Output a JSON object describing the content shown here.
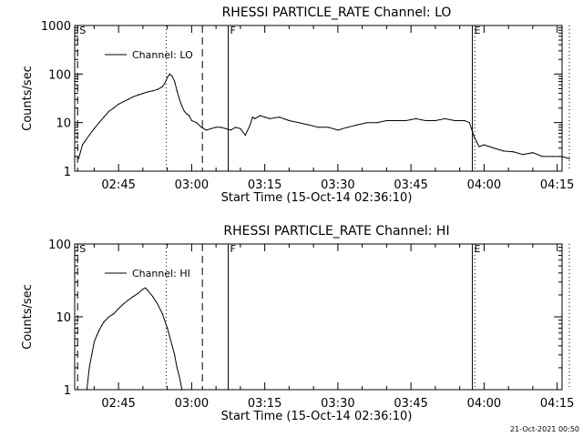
{
  "footer_stamp": "21-Oct-2021 00:50",
  "chart_data": [
    {
      "type": "line",
      "title": "RHESSI PARTICLE_RATE Channel: LO",
      "xlabel": "Start Time (15-Oct-14 02:36:10)",
      "ylabel": "Counts/sec",
      "yscale": "log",
      "ylim": [
        1,
        1000
      ],
      "xlim_minutes": [
        0,
        100
      ],
      "x_ticks": [
        9,
        24,
        39,
        54,
        69,
        84,
        99
      ],
      "x_tick_labels": [
        "02:45",
        "03:00",
        "03:15",
        "03:30",
        "03:45",
        "04:00",
        "04:15"
      ],
      "y_ticks": [
        1,
        10,
        100,
        1000
      ],
      "y_tick_labels": [
        "1",
        "10",
        "100",
        "1000"
      ],
      "legend": "Channel: LO",
      "markers": [
        {
          "label": "S",
          "minute": 0.6,
          "style": "dashed"
        },
        {
          "label": "",
          "minute": 18.8,
          "style": "dotted"
        },
        {
          "label": "",
          "minute": 26.2,
          "style": "dashed"
        },
        {
          "label": "F",
          "minute": 31.5,
          "style": "solid"
        },
        {
          "label": "E",
          "minute": 81.6,
          "style": "solid"
        },
        {
          "label": "",
          "minute": 82.1,
          "style": "dotted"
        },
        {
          "label": "",
          "minute": 101.5,
          "style": "dotted"
        }
      ],
      "series": [
        {
          "name": "Channel: LO",
          "x": [
            0.8,
            1.2,
            1.6,
            2.0,
            3,
            4,
            5,
            6,
            7,
            8,
            9,
            10,
            11,
            12,
            13,
            14,
            15,
            16,
            17,
            18,
            18.5,
            19.0,
            19.5,
            20.0,
            20.5,
            21.0,
            21.5,
            22.0,
            22.5,
            23.0,
            23.5,
            24.0,
            25.0,
            26.0,
            27.0,
            28.0,
            29.0,
            30.0,
            31.0,
            32.0,
            33.0,
            34.0,
            35.0,
            36.0,
            36.5,
            37.0,
            38.0,
            39.0,
            40.0,
            42.0,
            44.0,
            46.0,
            48.0,
            50.0,
            52.0,
            54.0,
            56.0,
            58.0,
            60.0,
            62.0,
            64.0,
            66.0,
            68.0,
            70.0,
            72.0,
            74.0,
            76.0,
            78.0,
            80.0,
            81.0,
            81.5,
            82.0,
            82.5,
            83.0,
            84.0,
            86.0,
            88.0,
            90.0,
            92.0,
            94.0,
            96.0,
            98.0,
            100.0,
            101.5
          ],
          "values": [
            1.8,
            2.5,
            3.5,
            4.0,
            5.5,
            7.5,
            10,
            13,
            17,
            20,
            24,
            27,
            30,
            34,
            37,
            40,
            43,
            45,
            48,
            55,
            65,
            85,
            100,
            90,
            70,
            45,
            30,
            22,
            17,
            15,
            14,
            11,
            10,
            8,
            7,
            7.5,
            8,
            8,
            7.5,
            7,
            8,
            7.5,
            5.5,
            9,
            13,
            12,
            14,
            13,
            12,
            13,
            11,
            10,
            9,
            8,
            8,
            7,
            8,
            9,
            10,
            10,
            11,
            11,
            11,
            12,
            11,
            11,
            12,
            11,
            11,
            10,
            7,
            5,
            4,
            3.2,
            3.5,
            3.0,
            2.6,
            2.5,
            2.2,
            2.4,
            2.0,
            2.0,
            2.0,
            1.8
          ]
        }
      ]
    },
    {
      "type": "line",
      "title": "RHESSI PARTICLE_RATE Channel: HI",
      "xlabel": "Start Time (15-Oct-14 02:36:10)",
      "ylabel": "Counts/sec",
      "yscale": "log",
      "ylim": [
        1,
        100
      ],
      "xlim_minutes": [
        0,
        100
      ],
      "x_ticks": [
        9,
        24,
        39,
        54,
        69,
        84,
        99
      ],
      "x_tick_labels": [
        "02:45",
        "03:00",
        "03:15",
        "03:30",
        "03:45",
        "04:00",
        "04:15"
      ],
      "y_ticks": [
        1,
        10,
        100
      ],
      "y_tick_labels": [
        "1",
        "10",
        "100"
      ],
      "legend": "Channel: HI",
      "markers": [
        {
          "label": "S",
          "minute": 0.6,
          "style": "dashed"
        },
        {
          "label": "",
          "minute": 18.8,
          "style": "dotted"
        },
        {
          "label": "",
          "minute": 26.2,
          "style": "dashed"
        },
        {
          "label": "F",
          "minute": 31.5,
          "style": "solid"
        },
        {
          "label": "E",
          "minute": 81.6,
          "style": "solid"
        },
        {
          "label": "",
          "minute": 82.1,
          "style": "dotted"
        },
        {
          "label": "",
          "minute": 101.5,
          "style": "dotted"
        }
      ],
      "series": [
        {
          "name": "Channel: HI",
          "x": [
            2.5,
            3.0,
            3.5,
            4.0,
            4.5,
            5.0,
            5.5,
            6.0,
            7.0,
            8.0,
            9.0,
            10.0,
            11.0,
            12.0,
            13.0,
            14.0,
            14.5,
            15.0,
            16.0,
            17.0,
            18.0,
            19.0,
            20.0,
            20.5,
            21.0,
            21.5,
            22.0
          ],
          "values": [
            1.0,
            2.0,
            3.0,
            4.5,
            5.5,
            6.5,
            7.5,
            8.5,
            10,
            11,
            13,
            15,
            17,
            19,
            21,
            24,
            25,
            23,
            19,
            15,
            11,
            7,
            4,
            3,
            2,
            1.5,
            1.0
          ]
        }
      ]
    }
  ]
}
